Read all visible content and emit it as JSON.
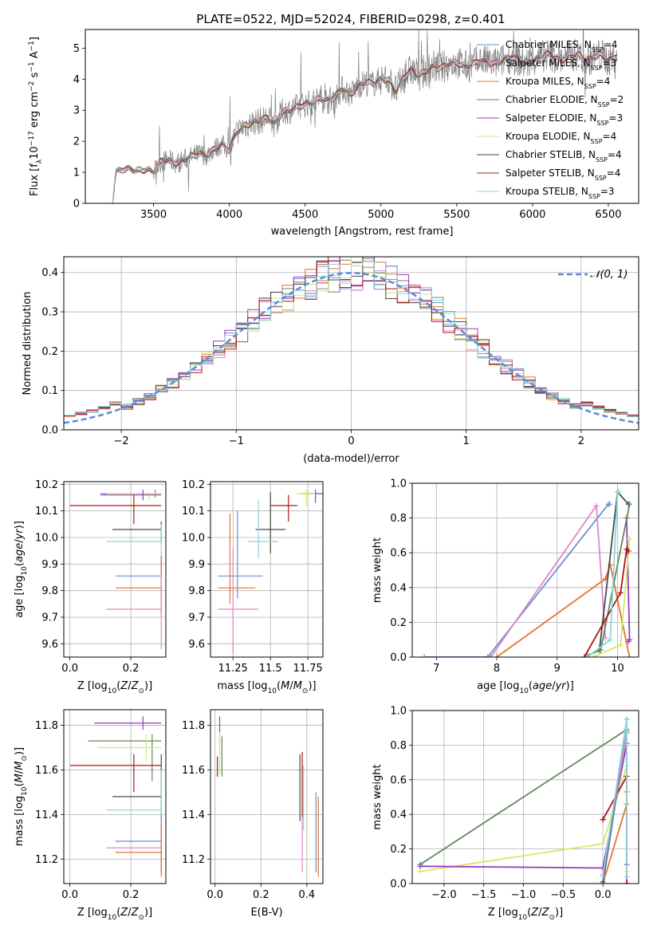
{
  "figure": {
    "title": "PLATE=0522, MJD=52024, FIBERID=0298, z=0.401"
  },
  "colors": {
    "chabrier_miles": "#6a8fd8",
    "salpeter_miles": "#e086c9",
    "kroupa_miles": "#e2762b",
    "chabrier_elodie": "#7a7a7a",
    "salpeter_elodie": "#9a3bbd",
    "kroupa_elodie": "#d7e868",
    "chabrier_stelib": "#4a4a4a",
    "salpeter_stelib": "#b01515",
    "kroupa_stelib": "#86d8dc",
    "green": "#5c8a5c",
    "gaussian": "#5b8bd9",
    "grid": "#b0b0b0"
  },
  "chart_data": [
    {
      "id": "spectrum",
      "type": "line",
      "xlabel": "wavelength [Angstrom, rest frame]",
      "ylabel": "Flux [f$_\\lambda$10$^{-17}$ erg cm$^{-2}$ s$^{-1}$ A$^{-1}$]",
      "xlim": [
        3050,
        6700
      ],
      "ylim": [
        0,
        5.6
      ],
      "xticks": [
        3500,
        4000,
        4500,
        5000,
        5500,
        6000,
        6500
      ],
      "yticks": [
        0,
        1,
        2,
        3,
        4,
        5
      ],
      "grid": false,
      "legend_position": "right",
      "legend": [
        {
          "label": "Chabrier MILES, N",
          "sub": "SSP",
          "suffix": "=4",
          "color": "#6a8fd8"
        },
        {
          "label": "Salpeter MILES, N",
          "sub": "SSP",
          "suffix": "=3",
          "color": "#e086c9"
        },
        {
          "label": "Kroupa MILES, N",
          "sub": "SSP",
          "suffix": "=4",
          "color": "#e2762b"
        },
        {
          "label": "Chabrier ELODIE, N",
          "sub": "SSP",
          "suffix": "=2",
          "color": "#7a7a7a"
        },
        {
          "label": "Salpeter ELODIE, N",
          "sub": "SSP",
          "suffix": "=3",
          "color": "#9a3bbd"
        },
        {
          "label": "Kroupa ELODIE, N",
          "sub": "SSP",
          "suffix": "=4",
          "color": "#d7e868"
        },
        {
          "label": "Chabrier STELIB, N",
          "sub": "SSP",
          "suffix": "=4",
          "color": "#4a4a4a"
        },
        {
          "label": "Salpeter STELIB, N",
          "sub": "SSP",
          "suffix": "=4",
          "color": "#b01515"
        },
        {
          "label": "Kroupa STELIB, N",
          "sub": "SSP",
          "suffix": "=3",
          "color": "#86d8dc"
        }
      ],
      "data_series": {
        "name": "observed",
        "x": [
          3230,
          3250,
          3300,
          3350,
          3400,
          3450,
          3500,
          3550,
          3600,
          3650,
          3700,
          3750,
          3800,
          3850,
          3900,
          3950,
          4000,
          4050,
          4100,
          4150,
          4200,
          4250,
          4300,
          4350,
          4400,
          4450,
          4500,
          4550,
          4600,
          4650,
          4700,
          4750,
          4800,
          4850,
          4900,
          4950,
          5000,
          5050,
          5100,
          5150,
          5200,
          5250,
          5300,
          5350,
          5400,
          5450,
          5500,
          5550,
          5600,
          5650,
          5700,
          5750,
          5800,
          5850,
          5900,
          5950,
          6000,
          6050,
          6100,
          6150,
          6200,
          6250,
          6300,
          6350,
          6400,
          6450,
          6500,
          6550
        ],
        "y": [
          0.0,
          1.0,
          1.1,
          1.1,
          1.05,
          1.1,
          1.0,
          1.35,
          1.4,
          1.3,
          1.4,
          1.5,
          1.6,
          1.55,
          1.75,
          1.9,
          1.7,
          2.3,
          2.5,
          2.6,
          2.65,
          2.75,
          2.55,
          2.95,
          3.0,
          3.1,
          3.2,
          3.25,
          3.4,
          3.3,
          3.45,
          3.7,
          3.5,
          3.8,
          3.9,
          3.85,
          4.0,
          4.0,
          3.6,
          4.05,
          4.3,
          4.1,
          4.3,
          4.4,
          4.35,
          4.5,
          4.55,
          4.4,
          4.45,
          4.6,
          4.55,
          4.5,
          4.6,
          4.7,
          4.65,
          4.5,
          4.6,
          4.7,
          4.8,
          4.7,
          4.65,
          4.75,
          4.8,
          4.6,
          4.7,
          4.8,
          4.6,
          4.75
        ]
      }
    },
    {
      "id": "residuals",
      "type": "histogram",
      "xlabel": "(data-model)/error",
      "ylabel": "Normed distribution",
      "xlim": [
        -2.5,
        2.5
      ],
      "ylim": [
        0,
        0.44
      ],
      "xticks": [
        -2,
        -1,
        0,
        1,
        2
      ],
      "yticks": [
        0.0,
        0.1,
        0.2,
        0.3,
        0.4
      ],
      "grid": true,
      "legend": [
        {
          "label": "𝒩(0, 1)",
          "style": "dashed",
          "color": "#5b8bd9"
        }
      ],
      "legend_position": "top-right",
      "bin_width": 0.1,
      "bin_start": -2.5
    },
    {
      "id": "z_age",
      "type": "errorbar",
      "xlabel": "Z [log10(Z/Z☉)]",
      "ylabel": "age [log10(age/yr)]",
      "xlim": [
        -0.02,
        0.315
      ],
      "ylim": [
        9.55,
        10.21
      ],
      "xticks": [
        0.0,
        0.2
      ],
      "yticks": [
        9.6,
        9.7,
        9.8,
        9.9,
        10.0,
        10.1,
        10.2
      ],
      "grid": true,
      "points": [
        {
          "x": 0.28,
          "xlo": 0.1,
          "xhi": 0.3,
          "y": 10.165,
          "ylo": 10.15,
          "yhi": 10.18,
          "color": "#6a8fd8"
        },
        {
          "x": 0.26,
          "xlo": 0.12,
          "xhi": 0.3,
          "y": 10.165,
          "ylo": 10.14,
          "yhi": 10.17,
          "color": "#d7e868"
        },
        {
          "x": 0.24,
          "xlo": 0.1,
          "xhi": 0.3,
          "y": 10.16,
          "ylo": 10.14,
          "yhi": 10.18,
          "color": "#9a3bbd"
        },
        {
          "x": 0.21,
          "xlo": 0.0,
          "xhi": 0.3,
          "y": 10.12,
          "ylo": 10.05,
          "yhi": 10.16,
          "color": "#b01515"
        },
        {
          "x": 0.3,
          "xlo": 0.14,
          "xhi": 0.3,
          "y": 10.03,
          "ylo": 9.98,
          "yhi": 10.06,
          "color": "#4a4a4a"
        },
        {
          "x": 0.3,
          "xlo": 0.12,
          "xhi": 0.3,
          "y": 9.985,
          "ylo": 9.9,
          "yhi": 10.05,
          "color": "#86d8dc"
        },
        {
          "x": 0.3,
          "xlo": 0.15,
          "xhi": 0.3,
          "y": 9.855,
          "ylo": 9.77,
          "yhi": 9.93,
          "color": "#6a8fd8"
        },
        {
          "x": 0.3,
          "xlo": 0.15,
          "xhi": 0.3,
          "y": 9.81,
          "ylo": 9.7,
          "yhi": 9.93,
          "color": "#e2762b"
        },
        {
          "x": 0.3,
          "xlo": 0.12,
          "xhi": 0.3,
          "y": 9.73,
          "ylo": 9.58,
          "yhi": 9.87,
          "color": "#e086c9"
        }
      ]
    },
    {
      "id": "mass_age",
      "type": "errorbar",
      "xlabel": "mass [log10(M/M☉)]",
      "ylabel": "",
      "xlim": [
        11.1,
        11.85
      ],
      "ylim": [
        9.55,
        10.21
      ],
      "xticks": [
        11.25,
        11.5,
        11.75
      ],
      "yticks": [
        9.6,
        9.7,
        9.8,
        9.9,
        10.0,
        10.1,
        10.2
      ],
      "grid": true,
      "points": [
        {
          "x": 11.8,
          "xlo": 11.7,
          "xhi": 11.85,
          "y": 10.165,
          "ylo": 10.13,
          "yhi": 10.18,
          "color": "#9a3bbd"
        },
        {
          "x": 11.74,
          "xlo": 11.67,
          "xhi": 11.8,
          "y": 10.165,
          "ylo": 10.12,
          "yhi": 10.18,
          "color": "#d7e868"
        },
        {
          "x": 11.62,
          "xlo": 11.5,
          "xhi": 11.68,
          "y": 10.12,
          "ylo": 10.06,
          "yhi": 10.16,
          "color": "#b01515"
        },
        {
          "x": 11.5,
          "xlo": 11.4,
          "xhi": 11.6,
          "y": 10.03,
          "ylo": 9.94,
          "yhi": 10.17,
          "color": "#4a4a4a"
        },
        {
          "x": 11.42,
          "xlo": 11.35,
          "xhi": 11.55,
          "y": 9.985,
          "ylo": 9.92,
          "yhi": 10.14,
          "color": "#86d8dc"
        },
        {
          "x": 11.28,
          "xlo": 11.15,
          "xhi": 11.45,
          "y": 9.855,
          "ylo": 9.77,
          "yhi": 10.1,
          "color": "#6a8fd8"
        },
        {
          "x": 11.23,
          "xlo": 11.15,
          "xhi": 11.4,
          "y": 9.81,
          "ylo": 9.75,
          "yhi": 10.09,
          "color": "#e2762b"
        },
        {
          "x": 11.25,
          "xlo": 11.15,
          "xhi": 11.42,
          "y": 9.73,
          "ylo": 9.56,
          "yhi": 9.96,
          "color": "#e086c9"
        }
      ]
    },
    {
      "id": "age_weight",
      "type": "line",
      "xlabel": "age [log10(age/yr)]",
      "ylabel": "mass weight",
      "xlim": [
        6.6,
        10.35
      ],
      "ylim": [
        0.0,
        1.0
      ],
      "xticks": [
        7,
        8,
        9,
        10
      ],
      "yticks": [
        0.0,
        0.2,
        0.4,
        0.6,
        0.8,
        1.0
      ],
      "grid": true,
      "series": [
        {
          "x": [
            6.8,
            7.85,
            9.85,
            9.87
          ],
          "y": [
            0.0,
            0.0,
            0.88,
            0.88
          ],
          "color": "#6a8fd8"
        },
        {
          "x": [
            7.9,
            9.65,
            9.8
          ],
          "y": [
            0.0,
            0.87,
            0.11
          ],
          "color": "#e086c9"
        },
        {
          "x": [
            8.0,
            9.8,
            9.88,
            10.2
          ],
          "y": [
            0.0,
            0.45,
            0.53,
            0.0
          ],
          "color": "#e2762b"
        },
        {
          "x": [
            9.7,
            10.0,
            10.18
          ],
          "y": [
            0.04,
            0.95,
            0.88
          ],
          "color": "#4a4a4a"
        },
        {
          "x": [
            10.15,
            10.2,
            10.18
          ],
          "y": [
            0.8,
            0.1,
            0.09
          ],
          "color": "#9a3bbd"
        },
        {
          "x": [
            9.6,
            10.05,
            10.2
          ],
          "y": [
            0.0,
            0.07,
            0.68
          ],
          "color": "#d7e868"
        },
        {
          "x": [
            9.5,
            9.72,
            10.2
          ],
          "y": [
            0.01,
            0.04,
            0.88
          ],
          "color": "#5c8a5c"
        },
        {
          "x": [
            9.45,
            10.05,
            10.15,
            10.18
          ],
          "y": [
            0.0,
            0.37,
            0.62,
            0.61
          ],
          "color": "#b01515"
        },
        {
          "x": [
            9.5,
            9.88,
            10.0,
            10.02
          ],
          "y": [
            0.0,
            0.1,
            0.95,
            0.95
          ],
          "color": "#86d8dc"
        }
      ]
    },
    {
      "id": "z_mass",
      "type": "errorbar",
      "xlabel": "Z [log10(Z/Z☉)]",
      "ylabel": "mass [log10(M/M☉)]",
      "xlim": [
        -0.02,
        0.315
      ],
      "ylim": [
        11.09,
        11.87
      ],
      "xticks": [
        0.0,
        0.2
      ],
      "yticks": [
        11.2,
        11.4,
        11.6,
        11.8
      ],
      "grid": true,
      "points": [
        {
          "x": 0.24,
          "xlo": 0.08,
          "xhi": 0.3,
          "y": 11.81,
          "ylo": 11.78,
          "yhi": 11.84,
          "color": "#9a3bbd"
        },
        {
          "x": 0.27,
          "xlo": 0.06,
          "xhi": 0.3,
          "y": 11.73,
          "ylo": 11.55,
          "yhi": 11.76,
          "color": "#5c8a5c"
        },
        {
          "x": 0.25,
          "xlo": 0.09,
          "xhi": 0.3,
          "y": 11.7,
          "ylo": 11.64,
          "yhi": 11.76,
          "color": "#d7e868"
        },
        {
          "x": 0.21,
          "xlo": 0.0,
          "xhi": 0.3,
          "y": 11.62,
          "ylo": 11.5,
          "yhi": 11.67,
          "color": "#b01515"
        },
        {
          "x": 0.3,
          "xlo": 0.14,
          "xhi": 0.3,
          "y": 11.48,
          "ylo": 11.38,
          "yhi": 11.67,
          "color": "#4a4a4a"
        },
        {
          "x": 0.3,
          "xlo": 0.12,
          "xhi": 0.3,
          "y": 11.42,
          "ylo": 11.3,
          "yhi": 11.6,
          "color": "#86d8dc"
        },
        {
          "x": 0.3,
          "xlo": 0.15,
          "xhi": 0.3,
          "y": 11.28,
          "ylo": 11.15,
          "yhi": 11.4,
          "color": "#6a8fd8"
        },
        {
          "x": 0.3,
          "xlo": 0.12,
          "xhi": 0.3,
          "y": 11.25,
          "ylo": 11.13,
          "yhi": 11.38,
          "color": "#e086c9"
        },
        {
          "x": 0.3,
          "xlo": 0.15,
          "xhi": 0.3,
          "y": 11.23,
          "ylo": 11.12,
          "yhi": 11.36,
          "color": "#e2762b"
        }
      ]
    },
    {
      "id": "ebv_mass",
      "type": "errorbar",
      "xlabel": "E(B-V)",
      "ylabel": "",
      "xlim": [
        -0.02,
        0.47
      ],
      "ylim": [
        11.09,
        11.87
      ],
      "xticks": [
        0.0,
        0.2,
        0.4
      ],
      "yticks": [
        11.2,
        11.4,
        11.6,
        11.8
      ],
      "grid": true,
      "points": [
        {
          "x": 0.02,
          "y": 11.81,
          "ylo": 11.72,
          "yhi": 11.84,
          "color": "#9a3bbd"
        },
        {
          "x": 0.03,
          "y": 11.7,
          "ylo": 11.57,
          "yhi": 11.75,
          "color": "#5c8a5c"
        },
        {
          "x": 0.02,
          "y": 11.7,
          "ylo": 11.58,
          "yhi": 11.77,
          "color": "#d7e868"
        },
        {
          "x": 0.01,
          "y": 11.62,
          "ylo": 11.57,
          "yhi": 11.66,
          "color": "#b01515"
        },
        {
          "x": 0.37,
          "y": 11.48,
          "ylo": 11.37,
          "yhi": 11.67,
          "color": "#4a4a4a"
        },
        {
          "x": 0.38,
          "y": 11.42,
          "ylo": 11.38,
          "yhi": 11.68,
          "color": "#b01515"
        },
        {
          "x": 0.385,
          "y": 11.42,
          "ylo": 11.33,
          "yhi": 11.62,
          "color": "#86d8dc"
        },
        {
          "x": 0.44,
          "y": 11.28,
          "ylo": 11.14,
          "yhi": 11.5,
          "color": "#6a8fd8"
        },
        {
          "x": 0.38,
          "y": 11.25,
          "ylo": 11.14,
          "yhi": 11.39,
          "color": "#e086c9"
        },
        {
          "x": 0.45,
          "y": 11.23,
          "ylo": 11.12,
          "yhi": 11.48,
          "color": "#e2762b"
        }
      ]
    },
    {
      "id": "z_weight",
      "type": "line",
      "xlabel": "Z [log10(Z/Z☉)]",
      "ylabel": "mass weight",
      "xlim": [
        -2.4,
        0.45
      ],
      "ylim": [
        0.0,
        1.0
      ],
      "xticks": [
        -2.0,
        -1.5,
        -1.0,
        -0.5,
        0.0
      ],
      "yticks": [
        0.0,
        0.2,
        0.4,
        0.6,
        0.8,
        1.0
      ],
      "grid": true,
      "series": [
        {
          "x": [
            -2.3,
            0.3
          ],
          "y": [
            0.11,
            0.89
          ],
          "color": "#5c8a5c"
        },
        {
          "x": [
            -2.3,
            0.0,
            0.3,
            0.3
          ],
          "y": [
            0.07,
            0.23,
            0.68,
            0.07
          ],
          "color": "#d7e868"
        },
        {
          "x": [
            -2.3,
            0.0,
            0.3,
            0.3
          ],
          "y": [
            0.1,
            0.09,
            0.81,
            0.11
          ],
          "color": "#9a3bbd"
        },
        {
          "x": [
            0.0,
            0.0,
            0.3,
            0.3
          ],
          "y": [
            0.37,
            0.37,
            0.62,
            0.0
          ],
          "color": "#b01515"
        },
        {
          "x": [
            0.0,
            0.3,
            0.3
          ],
          "y": [
            0.0,
            0.46,
            0.53
          ],
          "color": "#e2762b"
        },
        {
          "x": [
            0.0,
            0.3
          ],
          "y": [
            0.0,
            0.88
          ],
          "color": "#6a8fd8"
        },
        {
          "x": [
            0.0,
            0.3
          ],
          "y": [
            0.05,
            0.87
          ],
          "color": "#e086c9"
        },
        {
          "x": [
            0.0,
            0.3
          ],
          "y": [
            0.01,
            0.95
          ],
          "color": "#4a4a4a"
        },
        {
          "x": [
            0.0,
            0.3,
            0.3
          ],
          "y": [
            0.04,
            0.95,
            0.04
          ],
          "color": "#86d8dc"
        }
      ]
    }
  ]
}
